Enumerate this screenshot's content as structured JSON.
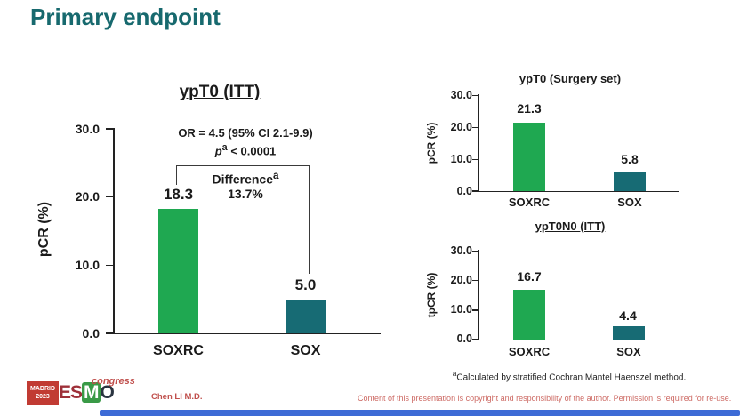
{
  "page_title": "Primary endpoint",
  "colors": {
    "title_teal": "#17696E",
    "bar_green": "#1FA851",
    "bar_teal": "#176B74",
    "footer_red": "#C0504D",
    "copyright_red": "#CD6A64",
    "logo_red": "#C13B33",
    "esmo_red": "#9E3039",
    "esmo_green": "#3A9A47",
    "esmo_dark": "#2A3440",
    "bottom_bar_blue": "#3D6BD6"
  },
  "chart_data": [
    {
      "type": "bar",
      "title": "ypT0 (ITT)",
      "ylabel": "pCR (%)",
      "ylim": [
        0,
        30
      ],
      "yticks": [
        "30.0",
        "20.0",
        "10.0",
        "0.0"
      ],
      "grid": false,
      "categories": [
        "SOXRC",
        "SOX"
      ],
      "values": [
        18.3,
        5.0
      ],
      "value_labels": [
        "18.3",
        "5.0"
      ],
      "bar_colors": [
        "#1FA851",
        "#176B74"
      ],
      "annotations": {
        "or_text": "OR = 4.5 (95% CI 2.1-9.9)",
        "p_symbol": "p",
        "p_sup": "a",
        "p_rest": " < 0.0001",
        "difference_label": "Difference",
        "difference_sup": "a",
        "difference_value": "13.7%"
      }
    },
    {
      "type": "bar",
      "title": "ypT0 (Surgery set)",
      "ylabel": "pCR (%)",
      "ylim": [
        0,
        30
      ],
      "yticks": [
        "30.0",
        "20.0",
        "10.0",
        "0.0"
      ],
      "grid": false,
      "categories": [
        "SOXRC",
        "SOX"
      ],
      "values": [
        21.3,
        5.8
      ],
      "value_labels": [
        "21.3",
        "5.8"
      ],
      "bar_colors": [
        "#1FA851",
        "#176B74"
      ]
    },
    {
      "type": "bar",
      "title": "ypT0N0 (ITT)",
      "ylabel": "tpCR (%)",
      "ylim": [
        0,
        30
      ],
      "yticks": [
        "30.0",
        "20.0",
        "10.0",
        "0.0"
      ],
      "grid": false,
      "categories": [
        "SOXRC",
        "SOX"
      ],
      "values": [
        16.7,
        4.4
      ],
      "value_labels": [
        "16.7",
        "4.4"
      ],
      "bar_colors": [
        "#1FA851",
        "#176B74"
      ]
    }
  ],
  "footnote": {
    "sup": "a",
    "text": "Calculated by stratified Cochran Mantel Haenszel method."
  },
  "footer": {
    "logo": {
      "city": "MADRID",
      "year": "2023",
      "e": "E",
      "s": "S",
      "m": "M",
      "o": "O",
      "congress": "congress"
    },
    "author": "Chen LI M.D.",
    "copyright": "Content of this presentation is copyright and responsibility of the author. Permission is required for re-use."
  }
}
